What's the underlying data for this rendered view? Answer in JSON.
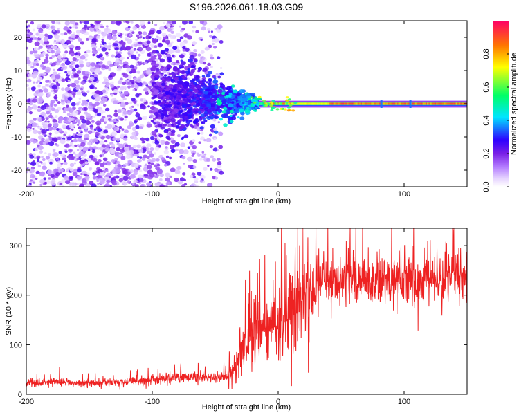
{
  "title": "S196.2026.061.18.03.G09",
  "chart_data": [
    {
      "type": "heatmap",
      "xlabel": "Height of straight line (km)",
      "ylabel": "Frequency (Hz)",
      "xlim": [
        -200,
        150
      ],
      "ylim": [
        -25,
        25
      ],
      "xticks": [
        -200,
        -100,
        0,
        100
      ],
      "yticks": [
        -20,
        -10,
        0,
        10,
        20
      ],
      "colorbar": {
        "label": "Normalized spectral amplitude",
        "range": [
          0,
          1
        ],
        "ticks": [
          0.0,
          0.2,
          0.4,
          0.6,
          0.8
        ],
        "tick_labels": [
          "0.0",
          "0.2",
          "0.4",
          "0.6",
          "0.8"
        ],
        "colors": [
          "#ffffff",
          "#e6d4ff",
          "#b37cff",
          "#7a1fe6",
          "#2e00ff",
          "#00e5ff",
          "#00ff66",
          "#ffff00",
          "#ff7700",
          "#ff0066"
        ]
      },
      "description_of_pattern": {
        "noise_region_x": [
          -200,
          -45
        ],
        "noise_freq_spread_hz": 25,
        "funnel_region_x": [
          -100,
          -15
        ],
        "signal_line_freq_hz": 0,
        "signal_line_x": [
          -15,
          150
        ],
        "signal_peak_amplitude": 0.95,
        "dips_x": [
          82,
          105
        ]
      }
    },
    {
      "type": "line",
      "xlabel": "Height of straight line (km)",
      "ylabel": "SNR (10 * v/v)",
      "xlim": [
        -200,
        150
      ],
      "ylim": [
        0,
        335
      ],
      "xticks": [
        -200,
        -100,
        0,
        100
      ],
      "yticks": [
        0,
        100,
        200,
        300
      ],
      "color": "#ee2222",
      "series": [
        {
          "name": "SNR",
          "x": [
            -200,
            -180,
            -160,
            -140,
            -120,
            -100,
            -80,
            -60,
            -40,
            -35,
            -30,
            -20,
            -10,
            0,
            10,
            20,
            30,
            40,
            60,
            80,
            100,
            120,
            140,
            150
          ],
          "values": [
            20,
            25,
            22,
            23,
            26,
            28,
            35,
            33,
            35,
            55,
            80,
            115,
            130,
            145,
            165,
            190,
            215,
            225,
            225,
            225,
            228,
            232,
            238,
            235
          ]
        }
      ]
    }
  ]
}
